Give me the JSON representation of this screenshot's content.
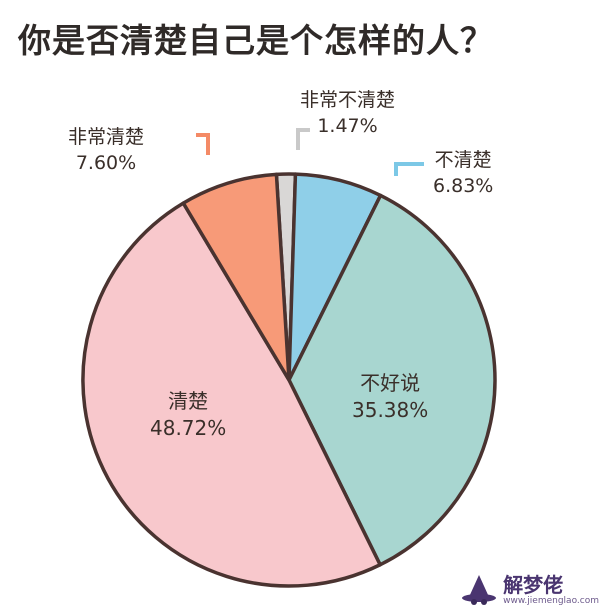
{
  "title": "你是否清楚自己是个怎样的人？",
  "chart_data": {
    "type": "pie",
    "title": "你是否清楚自己是个怎样的人？",
    "slices": [
      {
        "label": "非常不清楚",
        "value": 1.47,
        "display": "1.47%",
        "color": "#d9d7d6"
      },
      {
        "label": "不清楚",
        "value": 6.83,
        "display": "6.83%",
        "color": "#8fcfe8"
      },
      {
        "label": "不好说",
        "value": 35.38,
        "display": "35.38%",
        "color": "#a8d6d0"
      },
      {
        "label": "清楚",
        "value": 48.72,
        "display": "48.72%",
        "color": "#f8c8cc"
      },
      {
        "label": "非常清楚",
        "value": 7.6,
        "display": "7.60%",
        "color": "#f79a78"
      }
    ],
    "outline_color": "#4a3330"
  },
  "watermark": {
    "brand": "解梦佬",
    "url": "www.jiemenglao.com"
  }
}
